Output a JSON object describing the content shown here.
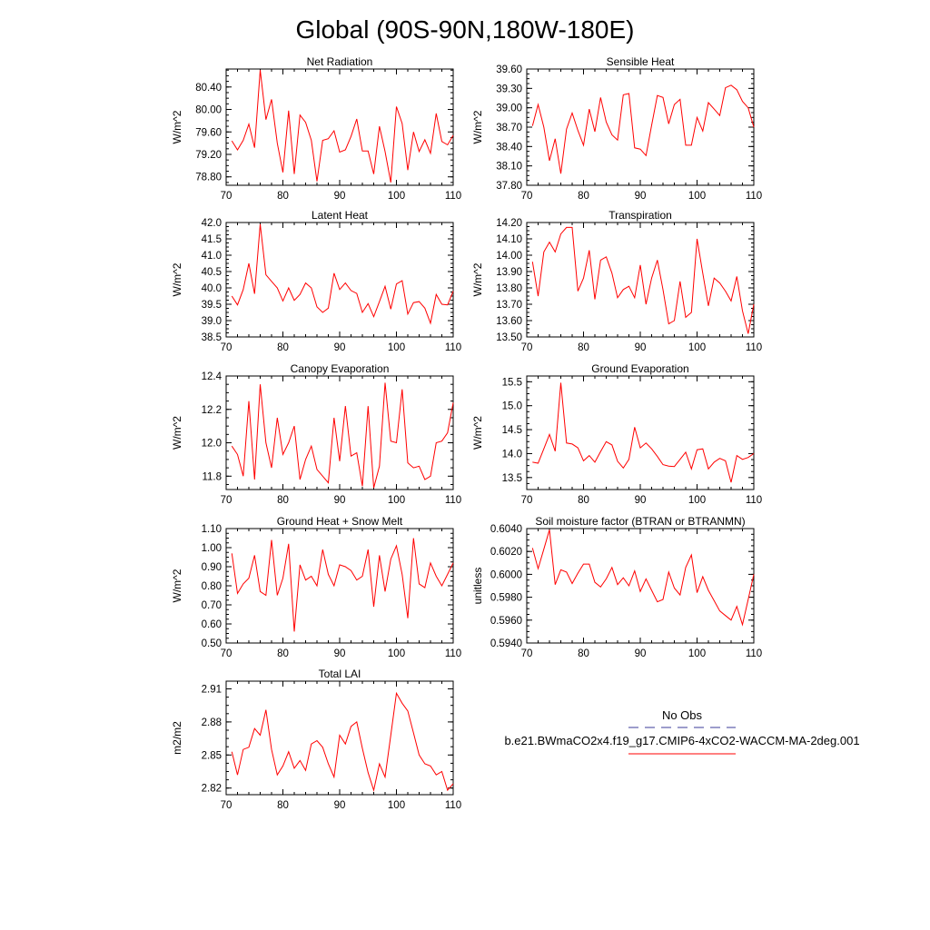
{
  "figure": {
    "title": "Global (90S-90N,180W-180E)"
  },
  "legend": {
    "entries": [
      {
        "label": "No Obs",
        "color": "#3b3b9a",
        "dash": "dashed"
      },
      {
        "label": "b.e21.BWmaCO2x4.f19_g17.CMIP6-4xCO2-WACCM-MA-2deg.001",
        "color": "#ff0000",
        "dash": "solid"
      }
    ]
  },
  "chart_data": [
    {
      "type": "line",
      "title": "Net Radiation",
      "ylabel": "W/m^2",
      "xlim": [
        70,
        110
      ],
      "ylim": [
        78.65,
        80.72
      ],
      "xticks": [
        70,
        80,
        90,
        100,
        110
      ],
      "xtick_labels": [
        "70",
        "80",
        "90",
        "100",
        "110"
      ],
      "yticks": [
        78.8,
        79.2,
        79.6,
        80.0,
        80.4
      ],
      "ytick_labels": [
        "78.80",
        "79.20",
        "79.60",
        "80.00",
        "80.40"
      ],
      "series": [
        {
          "color": "#ff0000",
          "x": [
            71,
            72,
            73,
            74,
            75,
            76,
            77,
            78,
            79,
            80,
            81,
            82,
            83,
            84,
            85,
            86,
            87,
            88,
            89,
            90,
            91,
            92,
            93,
            94,
            95,
            96,
            97,
            98,
            99,
            100,
            101,
            102,
            103,
            104,
            105,
            106,
            107,
            108,
            109,
            110
          ],
          "values": [
            79.44,
            79.28,
            79.45,
            79.74,
            79.32,
            80.7,
            79.82,
            80.18,
            79.4,
            78.88,
            79.98,
            78.85,
            79.9,
            79.77,
            79.45,
            78.72,
            79.45,
            79.48,
            79.62,
            79.24,
            79.28,
            79.52,
            79.83,
            79.26,
            79.26,
            78.85,
            79.7,
            79.25,
            78.7,
            80.05,
            79.75,
            78.92,
            79.6,
            79.25,
            79.46,
            79.22,
            79.93,
            79.43,
            79.37,
            79.54
          ]
        }
      ]
    },
    {
      "type": "line",
      "title": "Sensible Heat",
      "ylabel": "W/m^2",
      "xlim": [
        70,
        110
      ],
      "ylim": [
        37.8,
        39.6
      ],
      "xticks": [
        70,
        80,
        90,
        100,
        110
      ],
      "xtick_labels": [
        "70",
        "80",
        "90",
        "100",
        "110"
      ],
      "yticks": [
        37.8,
        38.1,
        38.4,
        38.7,
        39.0,
        39.3,
        39.6
      ],
      "ytick_labels": [
        "37.80",
        "38.10",
        "38.40",
        "38.70",
        "39.00",
        "39.30",
        "39.60"
      ],
      "series": [
        {
          "color": "#ff0000",
          "x": [
            71,
            72,
            73,
            74,
            75,
            76,
            77,
            78,
            79,
            80,
            81,
            82,
            83,
            84,
            85,
            86,
            87,
            88,
            89,
            90,
            91,
            92,
            93,
            94,
            95,
            96,
            97,
            98,
            99,
            100,
            101,
            102,
            103,
            104,
            105,
            106,
            107,
            108,
            109,
            110
          ],
          "values": [
            38.72,
            39.05,
            38.7,
            38.18,
            38.52,
            37.98,
            38.67,
            38.92,
            38.65,
            38.42,
            38.98,
            38.63,
            39.16,
            38.78,
            38.58,
            38.5,
            39.2,
            39.22,
            38.38,
            38.36,
            38.26,
            38.73,
            39.19,
            39.16,
            38.75,
            39.05,
            39.13,
            38.42,
            38.42,
            38.85,
            38.64,
            39.08,
            38.98,
            38.88,
            39.31,
            39.35,
            39.28,
            39.1,
            39.0,
            38.7
          ]
        }
      ]
    },
    {
      "type": "line",
      "title": "Latent Heat",
      "ylabel": "W/m^2",
      "xlim": [
        70,
        110
      ],
      "ylim": [
        38.5,
        42.0
      ],
      "xticks": [
        70,
        80,
        90,
        100,
        110
      ],
      "xtick_labels": [
        "70",
        "80",
        "90",
        "100",
        "110"
      ],
      "yticks": [
        38.5,
        39.0,
        39.5,
        40.0,
        40.5,
        41.0,
        41.5,
        42.0
      ],
      "ytick_labels": [
        "38.5",
        "39.0",
        "39.5",
        "40.0",
        "40.5",
        "41.0",
        "41.5",
        "42.0"
      ],
      "series": [
        {
          "color": "#ff0000",
          "x": [
            71,
            72,
            73,
            74,
            75,
            76,
            77,
            78,
            79,
            80,
            81,
            82,
            83,
            84,
            85,
            86,
            87,
            88,
            89,
            90,
            91,
            92,
            93,
            94,
            95,
            96,
            97,
            98,
            99,
            100,
            101,
            102,
            103,
            104,
            105,
            106,
            107,
            108,
            109,
            110
          ],
          "values": [
            39.75,
            39.48,
            39.95,
            40.75,
            39.82,
            41.95,
            40.4,
            40.2,
            40.0,
            39.6,
            40.0,
            39.62,
            39.8,
            40.15,
            40.0,
            39.42,
            39.25,
            39.38,
            40.45,
            39.95,
            40.15,
            39.92,
            39.83,
            39.25,
            39.52,
            39.12,
            39.58,
            40.05,
            39.35,
            40.12,
            40.22,
            39.2,
            39.55,
            39.58,
            39.38,
            38.92,
            39.8,
            39.5,
            39.48,
            39.9
          ]
        }
      ]
    },
    {
      "type": "line",
      "title": "Transpiration",
      "ylabel": "W/m^2",
      "xlim": [
        70,
        110
      ],
      "ylim": [
        13.5,
        14.2
      ],
      "xticks": [
        70,
        80,
        90,
        100,
        110
      ],
      "xtick_labels": [
        "70",
        "80",
        "90",
        "100",
        "110"
      ],
      "yticks": [
        13.5,
        13.6,
        13.7,
        13.8,
        13.9,
        14.0,
        14.1,
        14.2
      ],
      "ytick_labels": [
        "13.50",
        "13.60",
        "13.70",
        "13.80",
        "13.90",
        "14.00",
        "14.10",
        "14.20"
      ],
      "series": [
        {
          "color": "#ff0000",
          "x": [
            71,
            72,
            73,
            74,
            75,
            76,
            77,
            78,
            79,
            80,
            81,
            82,
            83,
            84,
            85,
            86,
            87,
            88,
            89,
            90,
            91,
            92,
            93,
            94,
            95,
            96,
            97,
            98,
            99,
            100,
            101,
            102,
            103,
            104,
            105,
            106,
            107,
            108,
            109,
            110
          ],
          "values": [
            13.96,
            13.75,
            14.02,
            14.08,
            14.02,
            14.13,
            14.17,
            14.17,
            13.78,
            13.86,
            14.03,
            13.73,
            13.97,
            13.99,
            13.89,
            13.74,
            13.79,
            13.81,
            13.74,
            13.94,
            13.7,
            13.86,
            13.97,
            13.79,
            13.58,
            13.6,
            13.84,
            13.62,
            13.65,
            14.1,
            13.89,
            13.69,
            13.86,
            13.83,
            13.78,
            13.72,
            13.87,
            13.66,
            13.52,
            13.7
          ]
        }
      ]
    },
    {
      "type": "line",
      "title": "Canopy Evaporation",
      "ylabel": "W/m^2",
      "xlim": [
        70,
        110
      ],
      "ylim": [
        11.72,
        12.4
      ],
      "xticks": [
        70,
        80,
        90,
        100,
        110
      ],
      "xtick_labels": [
        "70",
        "80",
        "90",
        "100",
        "110"
      ],
      "yticks": [
        11.8,
        12.0,
        12.2,
        12.4
      ],
      "ytick_labels": [
        "11.8",
        "12.0",
        "12.2",
        "12.4"
      ],
      "series": [
        {
          "color": "#ff0000",
          "x": [
            71,
            72,
            73,
            74,
            75,
            76,
            77,
            78,
            79,
            80,
            81,
            82,
            83,
            84,
            85,
            86,
            87,
            88,
            89,
            90,
            91,
            92,
            93,
            94,
            95,
            96,
            97,
            98,
            99,
            100,
            101,
            102,
            103,
            104,
            105,
            106,
            107,
            108,
            109,
            110
          ],
          "values": [
            11.98,
            11.93,
            11.8,
            12.25,
            11.78,
            12.35,
            12.0,
            11.85,
            12.15,
            11.93,
            12.0,
            12.1,
            11.78,
            11.9,
            11.98,
            11.84,
            11.8,
            11.76,
            12.15,
            11.89,
            12.22,
            11.92,
            11.94,
            11.74,
            12.22,
            11.73,
            11.86,
            12.36,
            12.01,
            12.0,
            12.32,
            11.88,
            11.85,
            11.86,
            11.78,
            11.8,
            12.0,
            12.01,
            12.06,
            12.24
          ]
        }
      ]
    },
    {
      "type": "line",
      "title": "Ground Evaporation",
      "ylabel": "W/m^2",
      "xlim": [
        70,
        110
      ],
      "ylim": [
        13.25,
        15.62
      ],
      "xticks": [
        70,
        80,
        90,
        100,
        110
      ],
      "xtick_labels": [
        "70",
        "80",
        "90",
        "100",
        "110"
      ],
      "yticks": [
        13.5,
        14.0,
        14.5,
        15.0,
        15.5
      ],
      "ytick_labels": [
        "13.5",
        "14.0",
        "14.5",
        "15.0",
        "15.5"
      ],
      "series": [
        {
          "color": "#ff0000",
          "x": [
            71,
            72,
            73,
            74,
            75,
            76,
            77,
            78,
            79,
            80,
            81,
            82,
            83,
            84,
            85,
            86,
            87,
            88,
            89,
            90,
            91,
            92,
            93,
            94,
            95,
            96,
            97,
            98,
            99,
            100,
            101,
            102,
            103,
            104,
            105,
            106,
            107,
            108,
            109,
            110
          ],
          "values": [
            13.82,
            13.8,
            14.1,
            14.4,
            14.05,
            15.48,
            14.22,
            14.2,
            14.12,
            13.85,
            13.96,
            13.82,
            14.04,
            14.25,
            14.18,
            13.84,
            13.7,
            13.88,
            14.55,
            14.12,
            14.22,
            14.1,
            13.94,
            13.77,
            13.74,
            13.73,
            13.88,
            14.03,
            13.68,
            14.08,
            14.1,
            13.68,
            13.82,
            13.9,
            13.85,
            13.4,
            13.96,
            13.88,
            13.92,
            14.0
          ]
        }
      ]
    },
    {
      "type": "line",
      "title": "Ground Heat + Snow Melt",
      "ylabel": "W/m^2",
      "xlim": [
        70,
        110
      ],
      "ylim": [
        0.5,
        1.1
      ],
      "xticks": [
        70,
        80,
        90,
        100,
        110
      ],
      "xtick_labels": [
        "70",
        "80",
        "90",
        "100",
        "110"
      ],
      "yticks": [
        0.5,
        0.6,
        0.7,
        0.8,
        0.9,
        1.0,
        1.1
      ],
      "ytick_labels": [
        "0.50",
        "0.60",
        "0.70",
        "0.80",
        "0.90",
        "1.00",
        "1.10"
      ],
      "series": [
        {
          "color": "#ff0000",
          "x": [
            71,
            72,
            73,
            74,
            75,
            76,
            77,
            78,
            79,
            80,
            81,
            82,
            83,
            84,
            85,
            86,
            87,
            88,
            89,
            90,
            91,
            92,
            93,
            94,
            95,
            96,
            97,
            98,
            99,
            100,
            101,
            102,
            103,
            104,
            105,
            106,
            107,
            108,
            109,
            110
          ],
          "values": [
            0.97,
            0.76,
            0.81,
            0.84,
            0.96,
            0.77,
            0.75,
            1.04,
            0.75,
            0.84,
            1.02,
            0.56,
            0.91,
            0.83,
            0.85,
            0.8,
            0.99,
            0.86,
            0.8,
            0.91,
            0.9,
            0.88,
            0.83,
            0.85,
            0.99,
            0.69,
            0.96,
            0.77,
            0.94,
            1.01,
            0.86,
            0.63,
            1.05,
            0.81,
            0.79,
            0.92,
            0.85,
            0.8,
            0.86,
            0.92
          ]
        }
      ]
    },
    {
      "type": "line",
      "title": "Soil moisture factor (BTRAN or BTRANMN)",
      "ylabel": "unitless",
      "xlim": [
        70,
        110
      ],
      "ylim": [
        0.594,
        0.604
      ],
      "xticks": [
        70,
        80,
        90,
        100,
        110
      ],
      "xtick_labels": [
        "70",
        "80",
        "90",
        "100",
        "110"
      ],
      "yticks": [
        0.594,
        0.596,
        0.598,
        0.6,
        0.602,
        0.604
      ],
      "ytick_labels": [
        "0.5940",
        "0.5960",
        "0.5980",
        "0.6000",
        "0.6020",
        "0.6040"
      ],
      "series": [
        {
          "color": "#ff0000",
          "x": [
            71,
            72,
            73,
            74,
            75,
            76,
            77,
            78,
            79,
            80,
            81,
            82,
            83,
            84,
            85,
            86,
            87,
            88,
            89,
            90,
            91,
            92,
            93,
            94,
            95,
            96,
            97,
            98,
            99,
            100,
            101,
            102,
            103,
            104,
            105,
            106,
            107,
            108,
            109,
            110
          ],
          "values": [
            0.6023,
            0.6005,
            0.6022,
            0.6039,
            0.5991,
            0.6004,
            0.6002,
            0.5992,
            0.6001,
            0.6009,
            0.6009,
            0.5993,
            0.5989,
            0.5996,
            0.6006,
            0.5991,
            0.5997,
            0.599,
            0.6003,
            0.5985,
            0.5996,
            0.5986,
            0.5976,
            0.5978,
            0.6002,
            0.5988,
            0.5982,
            0.6006,
            0.6017,
            0.5984,
            0.5998,
            0.5986,
            0.5977,
            0.5968,
            0.5964,
            0.596,
            0.5972,
            0.5956,
            0.5978,
            0.6
          ]
        }
      ]
    },
    {
      "type": "line",
      "title": "Total LAI",
      "ylabel": "m2/m2",
      "xlim": [
        70,
        110
      ],
      "ylim": [
        2.814,
        2.917
      ],
      "xticks": [
        70,
        80,
        90,
        100,
        110
      ],
      "xtick_labels": [
        "70",
        "80",
        "90",
        "100",
        "110"
      ],
      "yticks": [
        2.82,
        2.85,
        2.88,
        2.91
      ],
      "ytick_labels": [
        "2.82",
        "2.85",
        "2.88",
        "2.91"
      ],
      "series": [
        {
          "color": "#ff0000",
          "x": [
            71,
            72,
            73,
            74,
            75,
            76,
            77,
            78,
            79,
            80,
            81,
            82,
            83,
            84,
            85,
            86,
            87,
            88,
            89,
            90,
            91,
            92,
            93,
            94,
            95,
            96,
            97,
            98,
            99,
            100,
            101,
            102,
            103,
            104,
            105,
            106,
            107,
            108,
            109,
            110
          ],
          "values": [
            2.853,
            2.832,
            2.855,
            2.857,
            2.874,
            2.868,
            2.891,
            2.855,
            2.832,
            2.84,
            2.853,
            2.838,
            2.845,
            2.836,
            2.86,
            2.863,
            2.857,
            2.842,
            2.83,
            2.868,
            2.86,
            2.876,
            2.88,
            2.856,
            2.834,
            2.818,
            2.842,
            2.83,
            2.868,
            2.906,
            2.897,
            2.89,
            2.87,
            2.85,
            2.842,
            2.84,
            2.832,
            2.835,
            2.818,
            2.824
          ]
        }
      ]
    }
  ]
}
